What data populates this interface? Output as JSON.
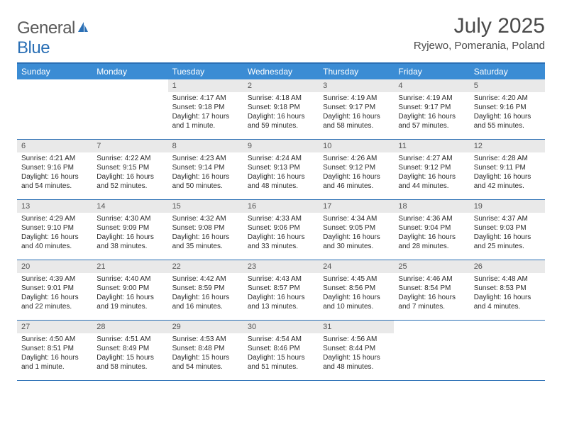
{
  "brand": {
    "text_general": "General",
    "text_blue": "Blue",
    "logo_fill": "#2a6fb5"
  },
  "title": "July 2025",
  "location": "Ryjewo, Pomerania, Poland",
  "colors": {
    "header_bar": "#3b8cd4",
    "rule": "#2a6fb5",
    "daynum_bg": "#e9e9e9",
    "text": "#2b2b2b",
    "title_text": "#4a4a4a"
  },
  "weekdays": [
    "Sunday",
    "Monday",
    "Tuesday",
    "Wednesday",
    "Thursday",
    "Friday",
    "Saturday"
  ],
  "weeks": [
    [
      null,
      null,
      {
        "n": "1",
        "sr": "Sunrise: 4:17 AM",
        "ss": "Sunset: 9:18 PM",
        "d1": "Daylight: 17 hours",
        "d2": "and 1 minute."
      },
      {
        "n": "2",
        "sr": "Sunrise: 4:18 AM",
        "ss": "Sunset: 9:18 PM",
        "d1": "Daylight: 16 hours",
        "d2": "and 59 minutes."
      },
      {
        "n": "3",
        "sr": "Sunrise: 4:19 AM",
        "ss": "Sunset: 9:17 PM",
        "d1": "Daylight: 16 hours",
        "d2": "and 58 minutes."
      },
      {
        "n": "4",
        "sr": "Sunrise: 4:19 AM",
        "ss": "Sunset: 9:17 PM",
        "d1": "Daylight: 16 hours",
        "d2": "and 57 minutes."
      },
      {
        "n": "5",
        "sr": "Sunrise: 4:20 AM",
        "ss": "Sunset: 9:16 PM",
        "d1": "Daylight: 16 hours",
        "d2": "and 55 minutes."
      }
    ],
    [
      {
        "n": "6",
        "sr": "Sunrise: 4:21 AM",
        "ss": "Sunset: 9:16 PM",
        "d1": "Daylight: 16 hours",
        "d2": "and 54 minutes."
      },
      {
        "n": "7",
        "sr": "Sunrise: 4:22 AM",
        "ss": "Sunset: 9:15 PM",
        "d1": "Daylight: 16 hours",
        "d2": "and 52 minutes."
      },
      {
        "n": "8",
        "sr": "Sunrise: 4:23 AM",
        "ss": "Sunset: 9:14 PM",
        "d1": "Daylight: 16 hours",
        "d2": "and 50 minutes."
      },
      {
        "n": "9",
        "sr": "Sunrise: 4:24 AM",
        "ss": "Sunset: 9:13 PM",
        "d1": "Daylight: 16 hours",
        "d2": "and 48 minutes."
      },
      {
        "n": "10",
        "sr": "Sunrise: 4:26 AM",
        "ss": "Sunset: 9:12 PM",
        "d1": "Daylight: 16 hours",
        "d2": "and 46 minutes."
      },
      {
        "n": "11",
        "sr": "Sunrise: 4:27 AM",
        "ss": "Sunset: 9:12 PM",
        "d1": "Daylight: 16 hours",
        "d2": "and 44 minutes."
      },
      {
        "n": "12",
        "sr": "Sunrise: 4:28 AM",
        "ss": "Sunset: 9:11 PM",
        "d1": "Daylight: 16 hours",
        "d2": "and 42 minutes."
      }
    ],
    [
      {
        "n": "13",
        "sr": "Sunrise: 4:29 AM",
        "ss": "Sunset: 9:10 PM",
        "d1": "Daylight: 16 hours",
        "d2": "and 40 minutes."
      },
      {
        "n": "14",
        "sr": "Sunrise: 4:30 AM",
        "ss": "Sunset: 9:09 PM",
        "d1": "Daylight: 16 hours",
        "d2": "and 38 minutes."
      },
      {
        "n": "15",
        "sr": "Sunrise: 4:32 AM",
        "ss": "Sunset: 9:08 PM",
        "d1": "Daylight: 16 hours",
        "d2": "and 35 minutes."
      },
      {
        "n": "16",
        "sr": "Sunrise: 4:33 AM",
        "ss": "Sunset: 9:06 PM",
        "d1": "Daylight: 16 hours",
        "d2": "and 33 minutes."
      },
      {
        "n": "17",
        "sr": "Sunrise: 4:34 AM",
        "ss": "Sunset: 9:05 PM",
        "d1": "Daylight: 16 hours",
        "d2": "and 30 minutes."
      },
      {
        "n": "18",
        "sr": "Sunrise: 4:36 AM",
        "ss": "Sunset: 9:04 PM",
        "d1": "Daylight: 16 hours",
        "d2": "and 28 minutes."
      },
      {
        "n": "19",
        "sr": "Sunrise: 4:37 AM",
        "ss": "Sunset: 9:03 PM",
        "d1": "Daylight: 16 hours",
        "d2": "and 25 minutes."
      }
    ],
    [
      {
        "n": "20",
        "sr": "Sunrise: 4:39 AM",
        "ss": "Sunset: 9:01 PM",
        "d1": "Daylight: 16 hours",
        "d2": "and 22 minutes."
      },
      {
        "n": "21",
        "sr": "Sunrise: 4:40 AM",
        "ss": "Sunset: 9:00 PM",
        "d1": "Daylight: 16 hours",
        "d2": "and 19 minutes."
      },
      {
        "n": "22",
        "sr": "Sunrise: 4:42 AM",
        "ss": "Sunset: 8:59 PM",
        "d1": "Daylight: 16 hours",
        "d2": "and 16 minutes."
      },
      {
        "n": "23",
        "sr": "Sunrise: 4:43 AM",
        "ss": "Sunset: 8:57 PM",
        "d1": "Daylight: 16 hours",
        "d2": "and 13 minutes."
      },
      {
        "n": "24",
        "sr": "Sunrise: 4:45 AM",
        "ss": "Sunset: 8:56 PM",
        "d1": "Daylight: 16 hours",
        "d2": "and 10 minutes."
      },
      {
        "n": "25",
        "sr": "Sunrise: 4:46 AM",
        "ss": "Sunset: 8:54 PM",
        "d1": "Daylight: 16 hours",
        "d2": "and 7 minutes."
      },
      {
        "n": "26",
        "sr": "Sunrise: 4:48 AM",
        "ss": "Sunset: 8:53 PM",
        "d1": "Daylight: 16 hours",
        "d2": "and 4 minutes."
      }
    ],
    [
      {
        "n": "27",
        "sr": "Sunrise: 4:50 AM",
        "ss": "Sunset: 8:51 PM",
        "d1": "Daylight: 16 hours",
        "d2": "and 1 minute."
      },
      {
        "n": "28",
        "sr": "Sunrise: 4:51 AM",
        "ss": "Sunset: 8:49 PM",
        "d1": "Daylight: 15 hours",
        "d2": "and 58 minutes."
      },
      {
        "n": "29",
        "sr": "Sunrise: 4:53 AM",
        "ss": "Sunset: 8:48 PM",
        "d1": "Daylight: 15 hours",
        "d2": "and 54 minutes."
      },
      {
        "n": "30",
        "sr": "Sunrise: 4:54 AM",
        "ss": "Sunset: 8:46 PM",
        "d1": "Daylight: 15 hours",
        "d2": "and 51 minutes."
      },
      {
        "n": "31",
        "sr": "Sunrise: 4:56 AM",
        "ss": "Sunset: 8:44 PM",
        "d1": "Daylight: 15 hours",
        "d2": "and 48 minutes."
      },
      null,
      null
    ]
  ]
}
